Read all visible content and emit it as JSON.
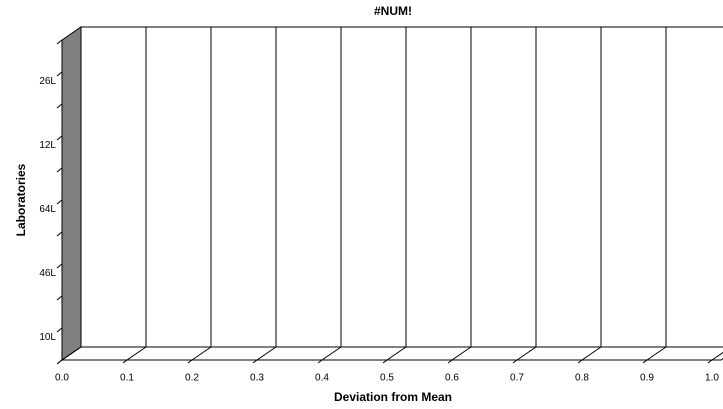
{
  "chart_data": {
    "type": "bar",
    "orientation": "horizontal",
    "title": "#NUM!",
    "x_label": "Deviation from Mean",
    "y_label": "Laboratories",
    "categories": [
      "10L",
      null,
      "46L",
      null,
      "64L",
      null,
      "12L",
      null,
      "26L",
      null
    ],
    "values": [
      null,
      null,
      null,
      null,
      null,
      null,
      null,
      null,
      null,
      null
    ],
    "xlim": [
      0,
      1
    ],
    "xticks": [
      {
        "value": 0,
        "label": "0.0"
      },
      0.1,
      0.2,
      0.3,
      0.4,
      0.5,
      0.6,
      0.7,
      0.8,
      0.9,
      {
        "value": 1,
        "label": "1.0"
      }
    ],
    "grid": true,
    "color": "#808080"
  }
}
